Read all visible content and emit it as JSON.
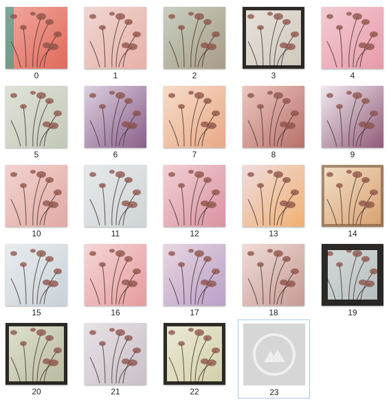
{
  "thumbnails": [
    {
      "label": "0",
      "tint": "#f2a8a0",
      "tint2": "#e06a5a",
      "frame": "none",
      "edge": "#18a890"
    },
    {
      "label": "1",
      "tint": "#efd6d2",
      "tint2": "#e9b0a8",
      "frame": "none"
    },
    {
      "label": "2",
      "tint": "#c9cfc2",
      "tint2": "#a89c86",
      "frame": "none"
    },
    {
      "label": "3",
      "tint": "#e7e3dc",
      "tint2": "#cfc7bb",
      "frame": "dark"
    },
    {
      "label": "4",
      "tint": "#f3ccd4",
      "tint2": "#e79aa8",
      "frame": "none"
    },
    {
      "label": "5",
      "tint": "#dfe3d8",
      "tint2": "#c3c8b8",
      "frame": "none"
    },
    {
      "label": "6",
      "tint": "#dcd0e0",
      "tint2": "#8a5f8a",
      "frame": "none"
    },
    {
      "label": "7",
      "tint": "#f6dcc8",
      "tint2": "#e9a986",
      "frame": "none"
    },
    {
      "label": "8",
      "tint": "#ecc8c0",
      "tint2": "#b8706a",
      "frame": "none"
    },
    {
      "label": "9",
      "tint": "#f2eaf0",
      "tint2": "#8f5a78",
      "frame": "none"
    },
    {
      "label": "10",
      "tint": "#f1d3d0",
      "tint2": "#e2a9a4",
      "frame": "none"
    },
    {
      "label": "11",
      "tint": "#e6e9ea",
      "tint2": "#cfd4d6",
      "frame": "none"
    },
    {
      "label": "12",
      "tint": "#f2cfd4",
      "tint2": "#d993a0",
      "frame": "none"
    },
    {
      "label": "13",
      "tint": "#efdce0",
      "tint2": "#f0b070",
      "frame": "none"
    },
    {
      "label": "14",
      "tint": "#f2e0c8",
      "tint2": "#d8a070",
      "frame": "soft"
    },
    {
      "label": "15",
      "tint": "#e9ecee",
      "tint2": "#c9d2d8",
      "frame": "none"
    },
    {
      "label": "16",
      "tint": "#f4d6d6",
      "tint2": "#e79a9e",
      "frame": "none"
    },
    {
      "label": "17",
      "tint": "#e8d6e0",
      "tint2": "#b8a0c8",
      "frame": "none"
    },
    {
      "label": "18",
      "tint": "#efdcd8",
      "tint2": "#c79a94",
      "frame": "none"
    },
    {
      "label": "19",
      "tint": "#d6dcdc",
      "tint2": "#b3bcbc",
      "frame": "black"
    },
    {
      "label": "20",
      "tint": "#dfe2d0",
      "tint2": "#b9b99c",
      "frame": "dark"
    },
    {
      "label": "21",
      "tint": "#e7e2e6",
      "tint2": "#c9bfc8",
      "frame": "none"
    },
    {
      "label": "22",
      "tint": "#ecebd8",
      "tint2": "#d1cfa8",
      "frame": "dark"
    },
    {
      "label": "23",
      "placeholder": true,
      "selected": true
    }
  ]
}
